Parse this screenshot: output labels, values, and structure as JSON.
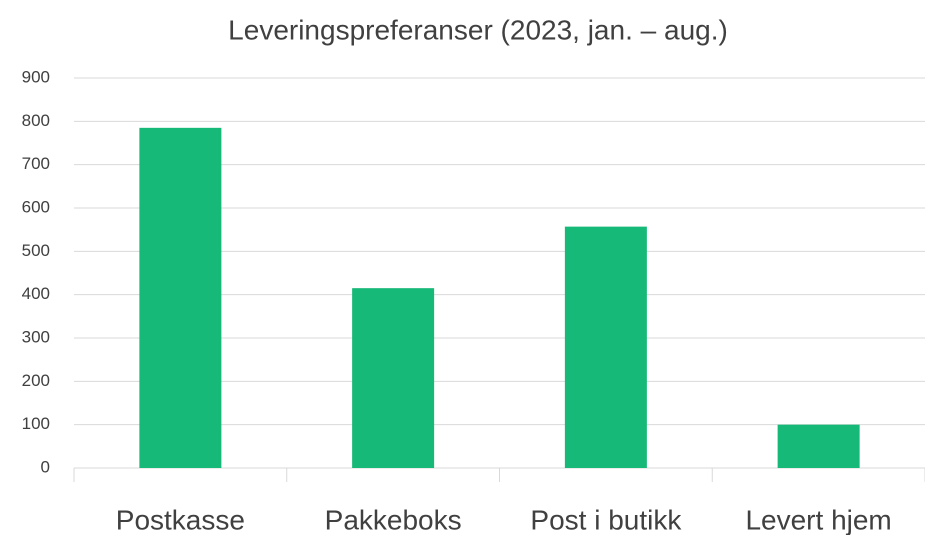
{
  "chart_data": {
    "type": "bar",
    "title": "Leveringspreferanser (2023, jan. – aug.)",
    "categories": [
      "Postkasse",
      "Pakkeboks",
      "Post i butikk",
      "Levert hjem"
    ],
    "values": [
      785,
      415,
      557,
      100
    ],
    "color": "#17b978",
    "ylim": [
      0,
      900
    ],
    "yticks": [
      0,
      100,
      200,
      300,
      400,
      500,
      600,
      700,
      800,
      900
    ],
    "grid": true
  }
}
